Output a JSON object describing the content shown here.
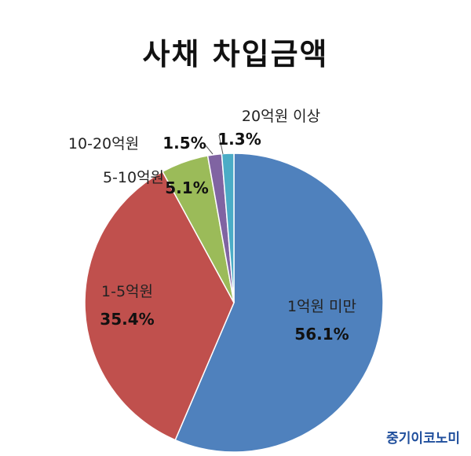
{
  "chart_data": {
    "type": "pie",
    "title": "사채 차입금액",
    "slices": [
      {
        "label": "1억원 미만",
        "value": 56.1,
        "value_label": "56.1%",
        "color": "#4f81bd"
      },
      {
        "label": "1-5억원",
        "value": 35.4,
        "value_label": "35.4%",
        "color": "#c0504d"
      },
      {
        "label": "5-10억원",
        "value": 5.1,
        "value_label": "5.1%",
        "color": "#9bbb59"
      },
      {
        "label": "10-20억원",
        "value": 1.5,
        "value_label": "1.5%",
        "color": "#8064a2"
      },
      {
        "label": "20억원 이상",
        "value": 1.3,
        "value_label": "1.3%",
        "color": "#4bacc6"
      }
    ]
  },
  "watermark": "중기이코노미"
}
